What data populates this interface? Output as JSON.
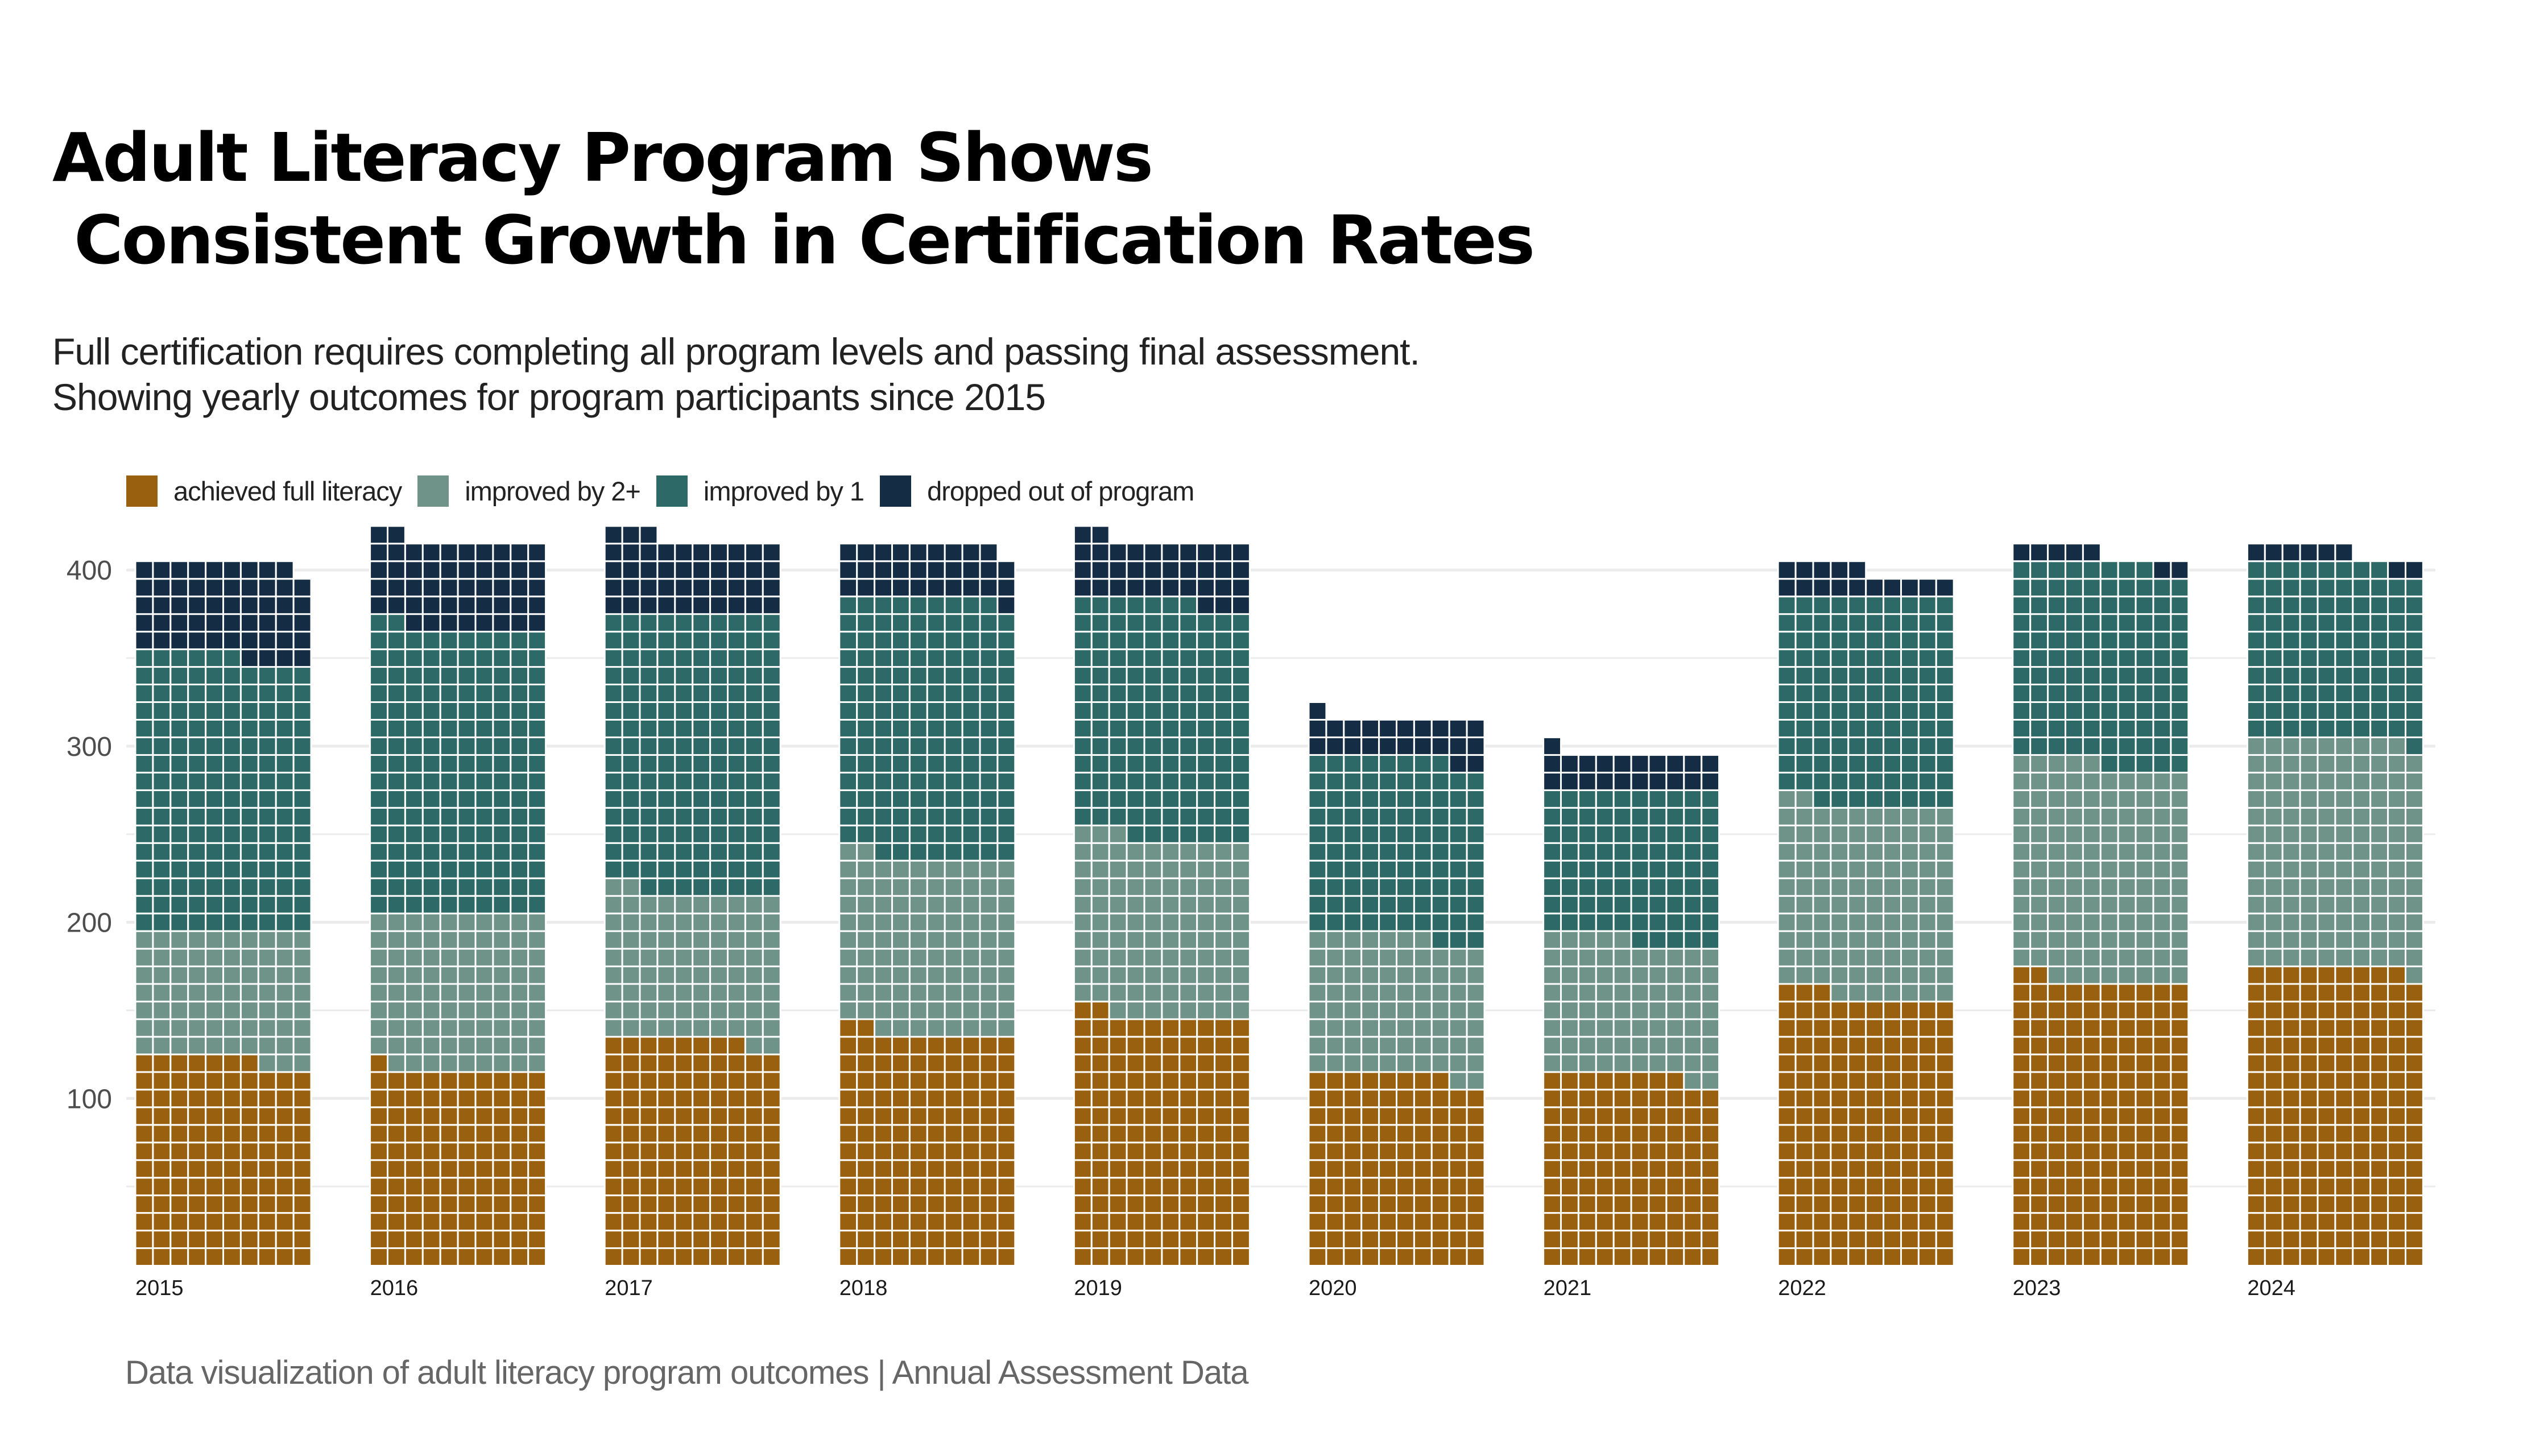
{
  "title": "Adult Literacy Program Shows\n Consistent Growth in Certification Rates",
  "subtitle": "Full certification requires completing all program levels and passing final assessment.\nShowing yearly outcomes for program participants since 2015",
  "caption": "Data visualization of adult literacy program outcomes | Annual Assessment Data",
  "legend": [
    {
      "label": "achieved full literacy",
      "color": "#99600F"
    },
    {
      "label": "improved by 2+",
      "color": "#6F9389"
    },
    {
      "label": "improved by 1",
      "color": "#2C6967"
    },
    {
      "label": "dropped out of program",
      "color": "#142C44"
    }
  ],
  "chart_data": {
    "type": "waffle-bar",
    "title": "Adult Literacy Program Shows Consistent Growth in Certification Rates",
    "subtitle": "Full certification requires completing all program levels and passing final assessment. Showing yearly outcomes for program participants since 2015",
    "xlabel": "",
    "ylabel": "",
    "cells_per_row": 10,
    "units_per_cell": 1,
    "categories": [
      "2015",
      "2016",
      "2017",
      "2018",
      "2019",
      "2020",
      "2021",
      "2022",
      "2023",
      "2024"
    ],
    "series": [
      {
        "name": "achieved full literacy",
        "color": "#99600F",
        "values": [
          117,
          111,
          128,
          132,
          142,
          108,
          108,
          153,
          162,
          169
        ]
      },
      {
        "name": "improved by 2+",
        "color": "#6F9389",
        "values": [
          73,
          89,
          84,
          100,
          101,
          79,
          77,
          109,
          123,
          130
        ]
      },
      {
        "name": "improved by 1",
        "color": "#2C6967",
        "values": [
          156,
          162,
          158,
          147,
          134,
          101,
          85,
          118,
          113,
          99
        ]
      },
      {
        "name": "dropped out of program",
        "color": "#142C44",
        "values": [
          53,
          50,
          43,
          30,
          35,
          23,
          21,
          15,
          7,
          8
        ]
      }
    ],
    "yticks": [
      100,
      200,
      300,
      400
    ],
    "minor_gridlines": [
      50,
      150,
      250,
      350
    ],
    "ylim": [
      0,
      430
    ],
    "grid": true,
    "legend_position": "top-left"
  }
}
